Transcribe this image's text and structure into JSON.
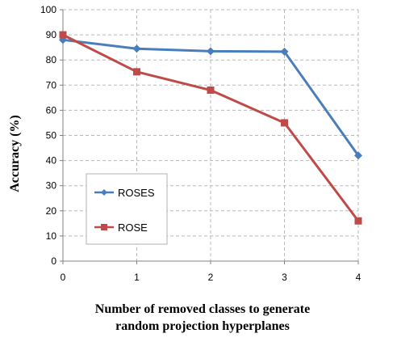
{
  "chart_data": {
    "type": "line",
    "xlabel_lines": [
      "Number of removed classes to generate",
      "random projection hyperplanes"
    ],
    "ylabel": "Accuracy (%)",
    "x": [
      0,
      1,
      2,
      3,
      4
    ],
    "xlim": [
      0,
      4
    ],
    "ylim": [
      0,
      100
    ],
    "yticks": [
      0,
      10,
      20,
      30,
      40,
      50,
      60,
      70,
      80,
      90,
      100
    ],
    "grid": true,
    "legend_position": "lower-left",
    "series": [
      {
        "name": "ROSES",
        "values": [
          88,
          84.5,
          83.5,
          83.3,
          42
        ],
        "color": "#4a7ebb",
        "marker": "diamond"
      },
      {
        "name": "ROSE",
        "values": [
          90,
          75.3,
          68,
          55,
          16
        ],
        "color": "#be4b48",
        "marker": "square"
      }
    ]
  }
}
